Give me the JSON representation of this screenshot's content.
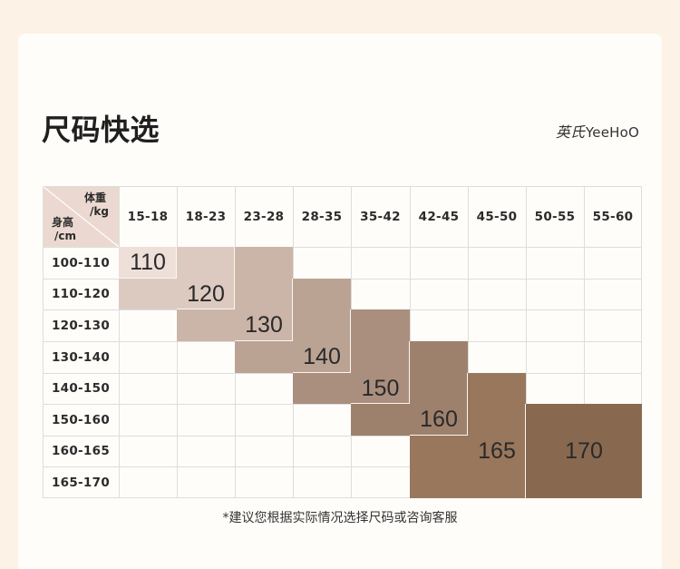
{
  "title": "尺码快选",
  "brand": {
    "logo_cn": "英氏",
    "logo_en": "YeeHoO"
  },
  "footnote": "*建议您根据实际情况选择尺码或咨询客服",
  "colors": {
    "page_background": "#fdf2e6",
    "card_background": "#fffdfa",
    "corner_background": "#ebd9d1",
    "grid_line": "#dddddd",
    "block_edge": "#faf5f1",
    "text": "#2a2a2a"
  },
  "chart_data": {
    "type": "table",
    "corner": {
      "col_label": "体重",
      "col_unit": "/kg",
      "row_label": "身高",
      "row_unit": "/cm"
    },
    "columns": [
      "15-18",
      "18-23",
      "23-28",
      "28-35",
      "35-42",
      "42-45",
      "45-50",
      "50-55",
      "55-60"
    ],
    "rows": [
      "100-110",
      "110-120",
      "120-130",
      "130-140",
      "140-150",
      "150-160",
      "160-165",
      "165-170"
    ],
    "sizes": [
      {
        "label": "110",
        "color": "#eedfd9"
      },
      {
        "label": "120",
        "color": "#dccac1"
      },
      {
        "label": "130",
        "color": "#cbb5a9"
      },
      {
        "label": "140",
        "color": "#bba394"
      },
      {
        "label": "150",
        "color": "#aa8f7e"
      },
      {
        "label": "160",
        "color": "#9e816d"
      },
      {
        "label": "165",
        "color": "#98775d"
      },
      {
        "label": "170",
        "color": "#886950"
      }
    ],
    "cells": [
      [
        110,
        120,
        130,
        null,
        null,
        null,
        null,
        null,
        null
      ],
      [
        120,
        120,
        130,
        140,
        null,
        null,
        null,
        null,
        null
      ],
      [
        null,
        130,
        130,
        140,
        150,
        null,
        null,
        null,
        null
      ],
      [
        null,
        null,
        140,
        140,
        150,
        160,
        null,
        null,
        null
      ],
      [
        null,
        null,
        null,
        150,
        150,
        160,
        165,
        null,
        null
      ],
      [
        null,
        null,
        null,
        null,
        160,
        160,
        165,
        170,
        170
      ],
      [
        null,
        null,
        null,
        null,
        null,
        165,
        165,
        170,
        170
      ],
      [
        null,
        null,
        null,
        null,
        null,
        165,
        165,
        170,
        170
      ]
    ]
  }
}
